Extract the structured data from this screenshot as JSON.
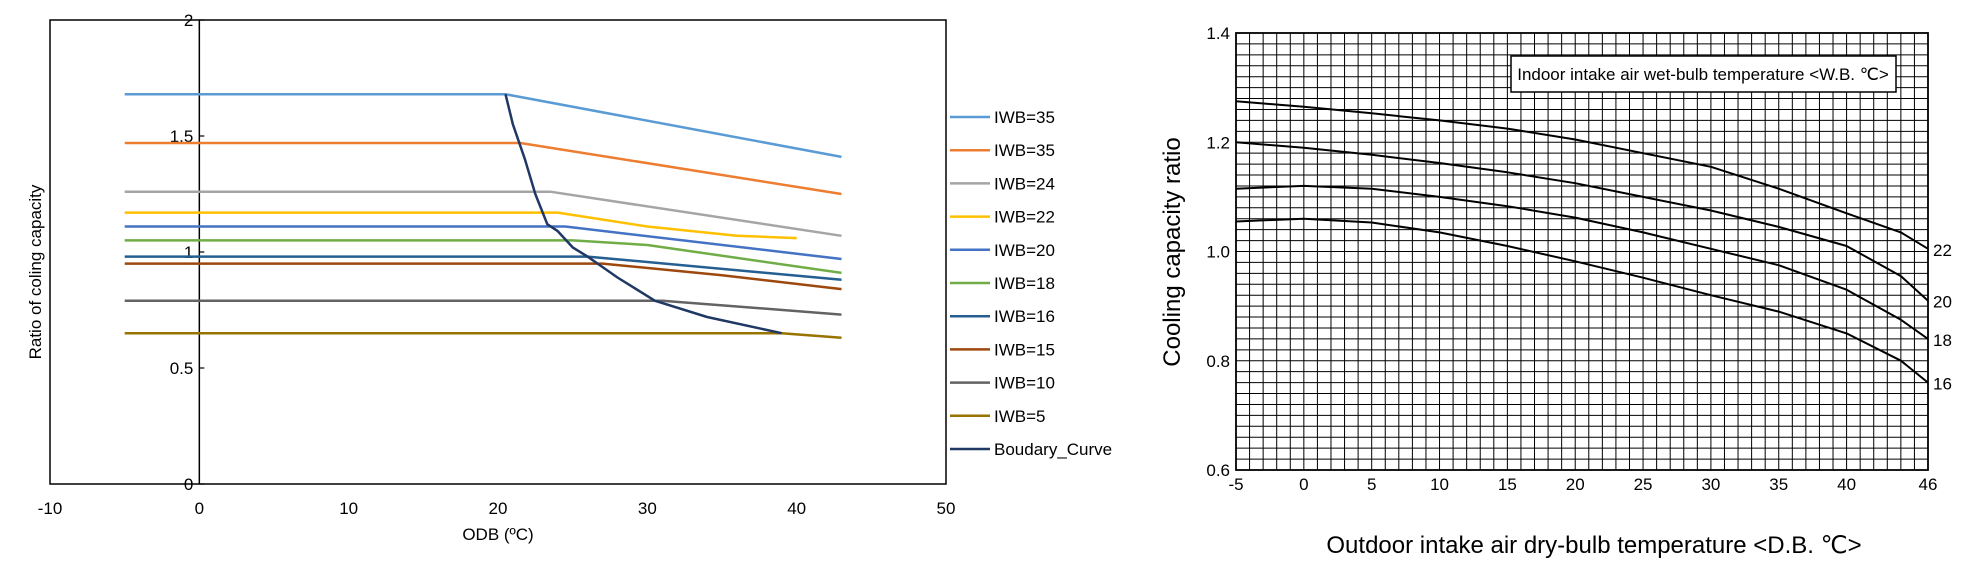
{
  "chart_data": [
    {
      "type": "line",
      "title": "",
      "xlabel": "ODB (ºC)",
      "ylabel": "Ratio of coling capacity",
      "xlim": [
        -10,
        50
      ],
      "ylim": [
        0,
        2
      ],
      "xticks": [
        "-10",
        "0",
        "10",
        "20",
        "30",
        "40",
        "50"
      ],
      "yticks": [
        "0",
        "0.5",
        "1",
        "1.5",
        "2"
      ],
      "grid": false,
      "legend_position": "right",
      "series": [
        {
          "name": "IWB=35",
          "color": "#5b9bd5",
          "x": [
            -5,
            20.5,
            43
          ],
          "y": [
            1.68,
            1.68,
            1.41
          ]
        },
        {
          "name": "IWB=35",
          "color": "#ed7d31",
          "x": [
            -5,
            21.5,
            43
          ],
          "y": [
            1.47,
            1.47,
            1.25
          ]
        },
        {
          "name": "IWB=24",
          "color": "#a5a5a5",
          "x": [
            -5,
            23.5,
            43
          ],
          "y": [
            1.26,
            1.26,
            1.07
          ]
        },
        {
          "name": "IWB=22",
          "color": "#ffc000",
          "x": [
            -5,
            24,
            30,
            36,
            40
          ],
          "y": [
            1.17,
            1.17,
            1.11,
            1.07,
            1.06
          ]
        },
        {
          "name": "IWB=20",
          "color": "#4472c4",
          "x": [
            -5,
            24.5,
            43
          ],
          "y": [
            1.11,
            1.11,
            0.97
          ]
        },
        {
          "name": "IWB=18",
          "color": "#70ad47",
          "x": [
            -5,
            25,
            30,
            43
          ],
          "y": [
            1.05,
            1.05,
            1.03,
            0.91
          ]
        },
        {
          "name": "IWB=16",
          "color": "#255e91",
          "x": [
            -5,
            26,
            43
          ],
          "y": [
            0.98,
            0.98,
            0.88
          ]
        },
        {
          "name": "IWB=15",
          "color": "#9e480e",
          "x": [
            -5,
            27,
            35,
            43
          ],
          "y": [
            0.95,
            0.95,
            0.9,
            0.84
          ]
        },
        {
          "name": "IWB=10",
          "color": "#636363",
          "x": [
            -5,
            31,
            43
          ],
          "y": [
            0.79,
            0.79,
            0.73
          ]
        },
        {
          "name": "IWB=5",
          "color": "#997300",
          "x": [
            -5,
            39,
            43
          ],
          "y": [
            0.65,
            0.65,
            0.63
          ]
        },
        {
          "name": "Boudary_Curve",
          "color": "#1f3864",
          "x": [
            20.5,
            21,
            21.8,
            22.5,
            23.3,
            24,
            25,
            26,
            28,
            30.5,
            34,
            39
          ],
          "y": [
            1.68,
            1.55,
            1.4,
            1.25,
            1.12,
            1.09,
            1.02,
            0.98,
            0.89,
            0.79,
            0.72,
            0.65
          ]
        }
      ]
    },
    {
      "type": "line",
      "title": "",
      "annotation": "Indoor intake air wet-bulb temperature <W.B. ℃>",
      "xlabel": "Outdoor intake air dry-bulb temperature <D.B. ℃>",
      "ylabel": "Cooling capacity ratio",
      "xlim": [
        -5,
        46
      ],
      "ylim": [
        0.6,
        1.4
      ],
      "xticks": [
        "-5",
        "0",
        "5",
        "10",
        "15",
        "20",
        "25",
        "30",
        "35",
        "40",
        "46"
      ],
      "yticks": [
        "0.6",
        "0.8",
        "1.0",
        "1.2",
        "1.4"
      ],
      "grid": true,
      "series": [
        {
          "name": "22",
          "color": "#000000",
          "x": [
            -5,
            0,
            5,
            10,
            15,
            20,
            25,
            30,
            35,
            40,
            44,
            46
          ],
          "y": [
            1.275,
            1.265,
            1.253,
            1.24,
            1.225,
            1.205,
            1.18,
            1.155,
            1.115,
            1.07,
            1.035,
            1.005
          ]
        },
        {
          "name": "20",
          "color": "#000000",
          "x": [
            -5,
            0,
            5,
            10,
            15,
            20,
            25,
            30,
            35,
            40,
            44,
            46
          ],
          "y": [
            1.2,
            1.19,
            1.177,
            1.162,
            1.145,
            1.125,
            1.1,
            1.075,
            1.045,
            1.01,
            0.955,
            0.91
          ]
        },
        {
          "name": "18",
          "color": "#000000",
          "x": [
            -5,
            0,
            5,
            10,
            15,
            20,
            25,
            30,
            35,
            40,
            44,
            46
          ],
          "y": [
            1.115,
            1.12,
            1.115,
            1.1,
            1.083,
            1.062,
            1.035,
            1.005,
            0.975,
            0.93,
            0.875,
            0.84
          ]
        },
        {
          "name": "16",
          "color": "#000000",
          "x": [
            -5,
            0,
            5,
            10,
            15,
            20,
            25,
            30,
            35,
            40,
            44,
            46
          ],
          "y": [
            1.055,
            1.06,
            1.053,
            1.035,
            1.01,
            0.982,
            0.952,
            0.92,
            0.89,
            0.85,
            0.8,
            0.76
          ]
        }
      ]
    }
  ]
}
